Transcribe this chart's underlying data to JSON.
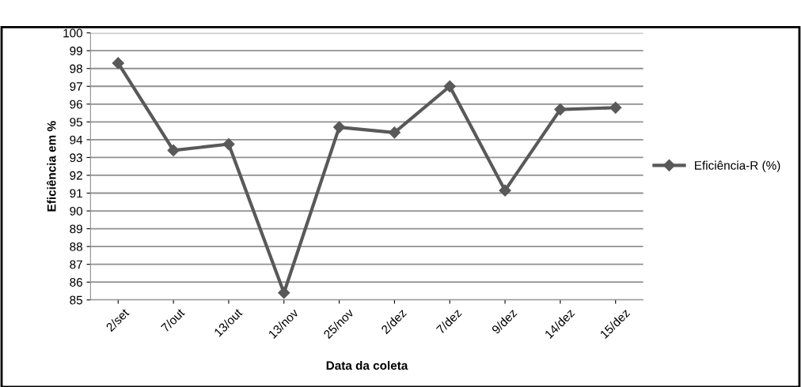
{
  "chart_data": {
    "type": "line",
    "xlabel": "Data da coleta",
    "ylabel": "Eficiência em %",
    "categories": [
      "2/set",
      "7/out",
      "13/out",
      "13/nov",
      "25/nov",
      "2/dez",
      "7/dez",
      "9/dez",
      "14/dez",
      "15/dez"
    ],
    "series": [
      {
        "name": "Eficiência-R (%)",
        "color": "#595959",
        "values": [
          98.3,
          93.4,
          93.75,
          85.4,
          94.7,
          94.4,
          97.0,
          91.15,
          95.7,
          95.8
        ]
      }
    ],
    "ylim": [
      85,
      100
    ],
    "yticks": [
      85,
      86,
      87,
      88,
      89,
      90,
      91,
      92,
      93,
      94,
      95,
      96,
      97,
      98,
      99,
      100
    ],
    "grid": "y",
    "legend": "right",
    "marker": "diamond",
    "line_style": "solid"
  }
}
